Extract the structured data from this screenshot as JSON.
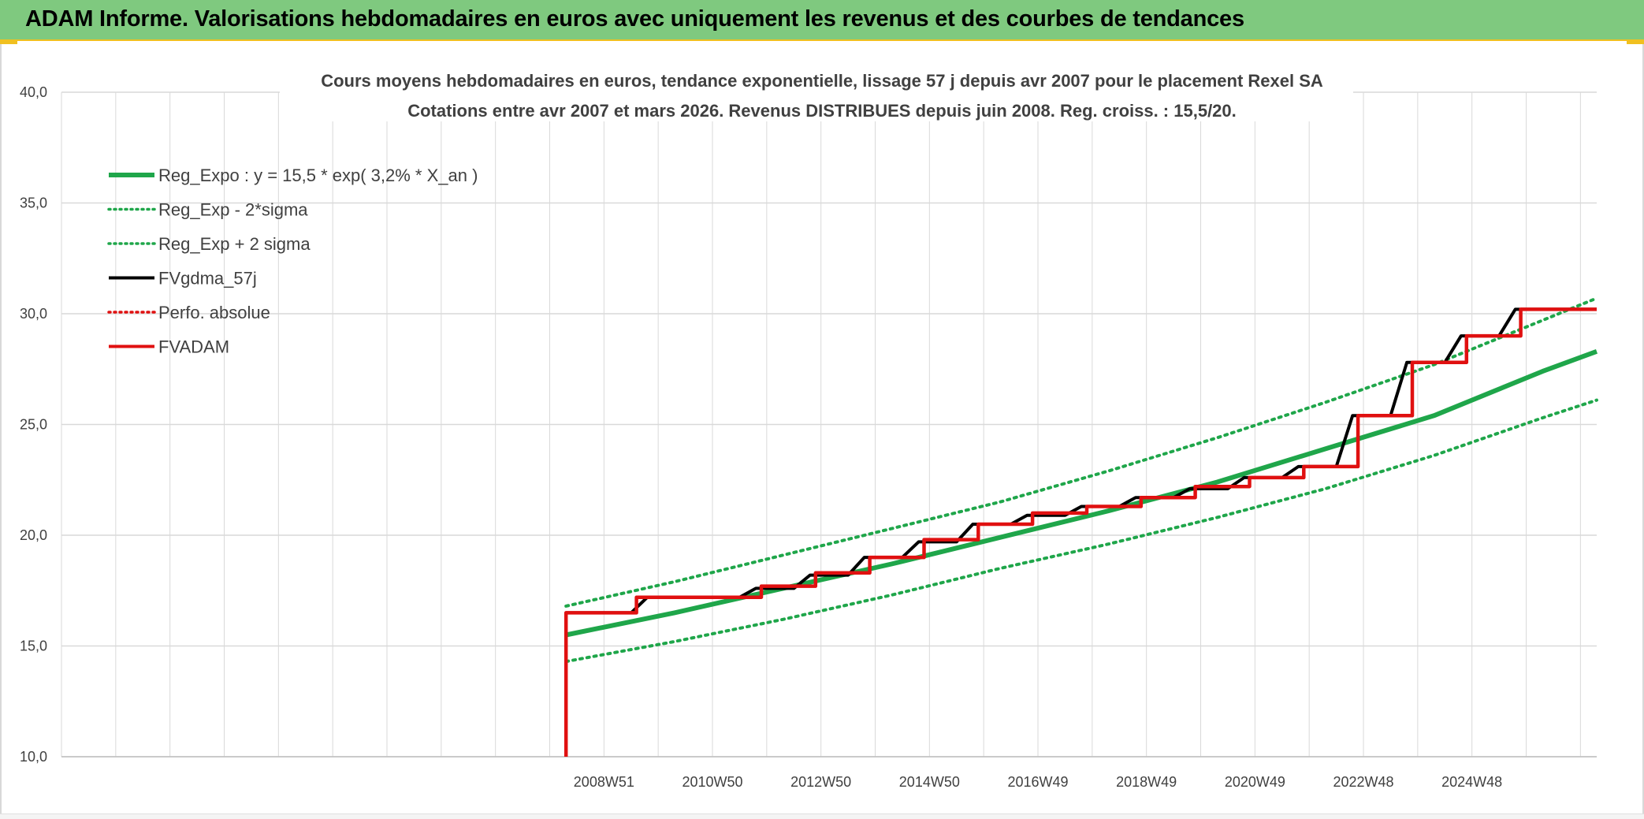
{
  "header": {
    "title": "ADAM Informe. Valorisations hebdomadaires en euros avec uniquement les revenus et des courbes de tendances"
  },
  "chart_data": {
    "type": "line",
    "title": "Cours moyens hebdomadaires en euros, tendance exponentielle, lissage 57 j depuis avr 2007 pour le placement Rexel SA",
    "subtitle": "Cotations entre avr 2007 et mars 2026. Revenus DISTRIBUES depuis juin 2008. Reg. croiss. : 15,5/20.",
    "xlabel": "",
    "ylabel": "",
    "ylim": [
      10,
      40
    ],
    "yticks": [
      "10,0",
      "15,0",
      "20,0",
      "25,0",
      "30,0",
      "35,0",
      "40,0"
    ],
    "xlim": [
      1998.0,
      2026.3
    ],
    "xticks": [
      {
        "label": "2008W51",
        "x": 2008.0
      },
      {
        "label": "2010W50",
        "x": 2010.0
      },
      {
        "label": "2012W50",
        "x": 2012.0
      },
      {
        "label": "2014W50",
        "x": 2014.0
      },
      {
        "label": "2016W49",
        "x": 2016.0
      },
      {
        "label": "2018W49",
        "x": 2018.0
      },
      {
        "label": "2020W49",
        "x": 2020.0
      },
      {
        "label": "2022W48",
        "x": 2022.0
      },
      {
        "label": "2024W48",
        "x": 2024.0
      }
    ],
    "grid": true,
    "legend_position": "top-left",
    "series": [
      {
        "name": "Reg_Expo : y = 15,5 * exp( 3,2% *  X_an )",
        "color": "#1fa64a",
        "style": "solid",
        "x": [
          2007.3,
          2009.3,
          2011.3,
          2013.3,
          2015.3,
          2017.3,
          2019.3,
          2021.3,
          2023.3,
          2025.3,
          2026.3
        ],
        "values": [
          15.5,
          16.5,
          17.6,
          18.7,
          19.9,
          21.1,
          22.4,
          23.9,
          25.4,
          27.4,
          28.3
        ]
      },
      {
        "name": "Reg_Exp - 2*sigma",
        "color": "#1fa64a",
        "style": "dotted",
        "x": [
          2007.3,
          2009.3,
          2011.3,
          2013.3,
          2015.3,
          2017.3,
          2019.3,
          2021.3,
          2023.3,
          2025.3,
          2026.3
        ],
        "values": [
          14.3,
          15.2,
          16.2,
          17.3,
          18.5,
          19.6,
          20.8,
          22.1,
          23.6,
          25.3,
          26.1
        ]
      },
      {
        "name": "Reg_Exp + 2 sigma",
        "color": "#1fa64a",
        "style": "dotted",
        "x": [
          2007.3,
          2009.3,
          2011.3,
          2013.3,
          2015.3,
          2017.3,
          2019.3,
          2021.3,
          2023.3,
          2025.3,
          2026.3
        ],
        "values": [
          16.8,
          17.9,
          19.1,
          20.3,
          21.5,
          22.9,
          24.4,
          26.0,
          27.7,
          29.7,
          30.7
        ]
      },
      {
        "name": "FVgdma_57j",
        "color": "#000000",
        "style": "solid",
        "x": [
          2007.3,
          2008.5,
          2008.8,
          2010.5,
          2010.8,
          2011.5,
          2011.8,
          2012.5,
          2012.8,
          2013.5,
          2013.8,
          2014.5,
          2014.8,
          2015.5,
          2015.8,
          2016.5,
          2016.8,
          2017.5,
          2017.8,
          2018.5,
          2018.8,
          2019.5,
          2019.8,
          2020.5,
          2020.8,
          2021.5,
          2021.8,
          2022.5,
          2022.8,
          2023.5,
          2023.8,
          2024.5,
          2024.8,
          2026.3
        ],
        "values": [
          16.5,
          16.5,
          17.2,
          17.2,
          17.6,
          17.6,
          18.2,
          18.2,
          19.0,
          19.0,
          19.7,
          19.7,
          20.5,
          20.5,
          20.9,
          20.9,
          21.3,
          21.3,
          21.7,
          21.7,
          22.1,
          22.1,
          22.6,
          22.6,
          23.1,
          23.1,
          25.4,
          25.4,
          27.8,
          27.8,
          29.0,
          29.0,
          30.2,
          30.2
        ]
      },
      {
        "name": "Perfo. absolue",
        "color": "#e01010",
        "style": "dotted",
        "x": [],
        "values": []
      },
      {
        "name": "FVADAM",
        "color": "#e01010",
        "style": "solid",
        "x": [
          2007.3,
          2007.3,
          2008.6,
          2008.6,
          2010.9,
          2010.9,
          2011.9,
          2011.9,
          2012.9,
          2012.9,
          2013.9,
          2013.9,
          2014.9,
          2014.9,
          2015.9,
          2015.9,
          2016.9,
          2016.9,
          2017.9,
          2017.9,
          2018.9,
          2018.9,
          2019.9,
          2019.9,
          2020.9,
          2020.9,
          2021.9,
          2021.9,
          2022.9,
          2022.9,
          2023.9,
          2023.9,
          2024.9,
          2024.9,
          2026.3
        ],
        "values": [
          10.0,
          16.5,
          16.5,
          17.2,
          17.2,
          17.7,
          17.7,
          18.3,
          18.3,
          19.0,
          19.0,
          19.8,
          19.8,
          20.5,
          20.5,
          21.0,
          21.0,
          21.3,
          21.3,
          21.7,
          21.7,
          22.2,
          22.2,
          22.6,
          22.6,
          23.1,
          23.1,
          25.4,
          25.4,
          27.8,
          27.8,
          29.0,
          29.0,
          30.2,
          30.2
        ]
      }
    ]
  }
}
